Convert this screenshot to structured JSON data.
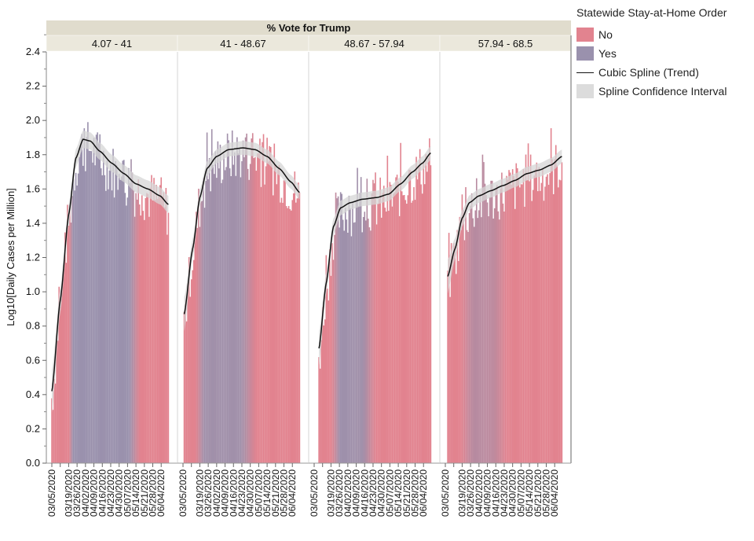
{
  "chart_data": {
    "type": "bar",
    "title": "% Vote for Trump",
    "xlabel": "",
    "ylabel": "Log10[Daily Cases per Million]",
    "ylim": [
      0,
      2.4
    ],
    "yticks": [
      0.0,
      0.2,
      0.4,
      0.6,
      0.8,
      1.0,
      1.2,
      1.4,
      1.6,
      1.8,
      2.0,
      2.2,
      2.4
    ],
    "ytick_labels": [
      "0.0",
      "0.2",
      "0.4",
      "0.6",
      "0.8",
      "1.0",
      "1.2",
      "1.4",
      "1.6",
      "1.8",
      "2.0",
      "2.2",
      "2.4"
    ],
    "xtick_labels": [
      "03/05/2020",
      "03/19/2020",
      "03/26/2020",
      "04/02/2020",
      "04/09/2020",
      "04/16/2020",
      "04/23/2020",
      "04/30/2020",
      "05/07/2020",
      "05/14/2020",
      "05/21/2020",
      "05/28/2020",
      "06/04/2020"
    ],
    "xtick_days": [
      0,
      14,
      21,
      28,
      35,
      42,
      49,
      56,
      63,
      70,
      77,
      84,
      91
    ],
    "day_range": [
      0,
      97
    ],
    "grid": false,
    "legend": {
      "title": "Statewide Stay-at-Home Order",
      "placement": "right",
      "entries": [
        {
          "label": "No",
          "kind": "bar",
          "color": "#e2838f"
        },
        {
          "label": "Yes",
          "kind": "bar",
          "color": "#9a91ad"
        },
        {
          "label": "Cubic Spline (Trend)",
          "kind": "line",
          "color": "#111111"
        },
        {
          "label": "Spline Confidence Interval",
          "kind": "band",
          "color": "#dcdcdc"
        }
      ]
    },
    "colors": {
      "no": "#e2838f",
      "yes": "#9a91ad",
      "spline": "#111111",
      "band": "#d6d6d6",
      "strip": "#e0dccd",
      "subStrip": "#ebe8dc"
    },
    "panels": [
      {
        "label": "4.07 - 41",
        "first_day": 0,
        "yes_fraction_by_day": [
          [
            0,
            0
          ],
          [
            14,
            0
          ],
          [
            18,
            1
          ],
          [
            64,
            1
          ],
          [
            74,
            0
          ],
          [
            97,
            0
          ]
        ],
        "spline": [
          [
            0,
            0.42
          ],
          [
            7,
            0.95
          ],
          [
            14,
            1.45
          ],
          [
            20,
            1.78
          ],
          [
            26,
            1.89
          ],
          [
            32,
            1.88
          ],
          [
            40,
            1.82
          ],
          [
            50,
            1.75
          ],
          [
            60,
            1.69
          ],
          [
            70,
            1.63
          ],
          [
            80,
            1.6
          ],
          [
            90,
            1.56
          ],
          [
            97,
            1.51
          ]
        ],
        "band_halfwidth": 0.05
      },
      {
        "label": "41 - 48.67",
        "first_day": 1,
        "yes_fraction_by_day": [
          [
            0,
            0
          ],
          [
            10,
            0
          ],
          [
            18,
            0.9
          ],
          [
            48,
            0.9
          ],
          [
            62,
            0
          ],
          [
            97,
            0
          ]
        ],
        "spline": [
          [
            1,
            0.87
          ],
          [
            8,
            1.25
          ],
          [
            14,
            1.55
          ],
          [
            20,
            1.72
          ],
          [
            28,
            1.79
          ],
          [
            38,
            1.83
          ],
          [
            50,
            1.84
          ],
          [
            60,
            1.83
          ],
          [
            70,
            1.79
          ],
          [
            80,
            1.72
          ],
          [
            90,
            1.64
          ],
          [
            97,
            1.58
          ]
        ],
        "band_halfwidth": 0.04
      },
      {
        "label": "48.67 - 57.94",
        "first_day": 4,
        "yes_fraction_by_day": [
          [
            0,
            0
          ],
          [
            14,
            0
          ],
          [
            22,
            0.95
          ],
          [
            40,
            0.9
          ],
          [
            52,
            0
          ],
          [
            97,
            0
          ]
        ],
        "spline": [
          [
            4,
            0.67
          ],
          [
            10,
            1.05
          ],
          [
            16,
            1.38
          ],
          [
            22,
            1.49
          ],
          [
            30,
            1.52
          ],
          [
            40,
            1.54
          ],
          [
            52,
            1.55
          ],
          [
            62,
            1.57
          ],
          [
            72,
            1.63
          ],
          [
            82,
            1.7
          ],
          [
            90,
            1.75
          ],
          [
            97,
            1.81
          ]
        ],
        "band_halfwidth": 0.04
      },
      {
        "label": "57.94 - 68.5",
        "first_day": 2,
        "yes_fraction_by_day": [
          [
            0,
            0
          ],
          [
            12,
            0
          ],
          [
            24,
            0.6
          ],
          [
            40,
            0.5
          ],
          [
            52,
            0
          ],
          [
            97,
            0
          ]
        ],
        "spline": [
          [
            2,
            1.09
          ],
          [
            8,
            1.25
          ],
          [
            14,
            1.43
          ],
          [
            20,
            1.52
          ],
          [
            28,
            1.56
          ],
          [
            38,
            1.59
          ],
          [
            48,
            1.62
          ],
          [
            58,
            1.65
          ],
          [
            68,
            1.69
          ],
          [
            78,
            1.71
          ],
          [
            88,
            1.74
          ],
          [
            97,
            1.79
          ]
        ],
        "band_halfwidth": 0.04
      }
    ]
  }
}
